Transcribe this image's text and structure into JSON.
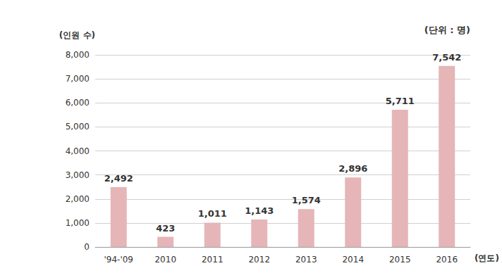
{
  "chart_data": {
    "type": "bar",
    "y_label": "(인원 수)",
    "x_label": "(연도)",
    "annotation": "(단위 : 명)",
    "categories": [
      "'94-'09",
      "2010",
      "2011",
      "2012",
      "2013",
      "2014",
      "2015",
      "2016"
    ],
    "values": [
      2492,
      423,
      1011,
      1143,
      1574,
      2896,
      5711,
      7542
    ],
    "value_labels": [
      "2,492",
      "423",
      "1,011",
      "1,143",
      "1,574",
      "2,896",
      "5,711",
      "7,542"
    ],
    "color": "#e6b5b8",
    "ylim": [
      0,
      8000
    ],
    "yticks": [
      0,
      {
        "value": 1000,
        "label": "1,000"
      },
      {
        "value": 2000,
        "label": "2,000"
      },
      {
        "value": 3000,
        "label": "3,000"
      },
      {
        "value": 4000,
        "label": "4,000"
      },
      {
        "value": 5000,
        "label": "5,000"
      },
      {
        "value": 6000,
        "label": "6,000"
      },
      {
        "value": 7000,
        "label": "7,000"
      },
      {
        "value": 8000,
        "label": "8,000"
      }
    ],
    "grid": true,
    "data_labels": true
  }
}
